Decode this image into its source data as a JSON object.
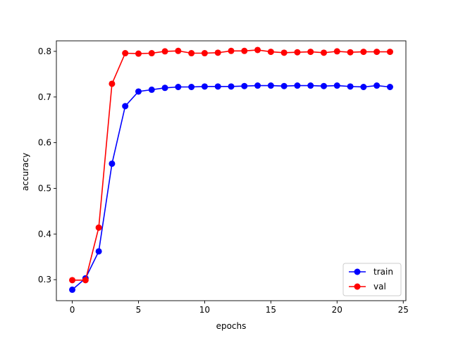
{
  "chart_data": {
    "type": "line",
    "title": "",
    "xlabel": "epochs",
    "ylabel": "accuracy",
    "xlim": [
      -1.2,
      25.2
    ],
    "ylim": [
      0.254,
      0.823
    ],
    "xticks": [
      0,
      5,
      10,
      15,
      20,
      25
    ],
    "yticks": [
      0.3,
      0.4,
      0.5,
      0.6,
      0.7,
      0.8
    ],
    "xtick_labels": [
      "0",
      "5",
      "10",
      "15",
      "20",
      "25"
    ],
    "ytick_labels": [
      "0.3",
      "0.4",
      "0.5",
      "0.6",
      "0.7",
      "0.8"
    ],
    "grid": false,
    "legend_position": "lower-right",
    "x": [
      0,
      1,
      2,
      3,
      4,
      5,
      6,
      7,
      8,
      9,
      10,
      11,
      12,
      13,
      14,
      15,
      16,
      17,
      18,
      19,
      20,
      21,
      22,
      23,
      24
    ],
    "series": [
      {
        "name": "train",
        "color": "#0000ff",
        "marker": "circle",
        "values": [
          0.278,
          0.303,
          0.362,
          0.554,
          0.68,
          0.712,
          0.716,
          0.72,
          0.722,
          0.722,
          0.723,
          0.723,
          0.723,
          0.724,
          0.725,
          0.725,
          0.724,
          0.725,
          0.725,
          0.724,
          0.725,
          0.723,
          0.722,
          0.725,
          0.722
        ]
      },
      {
        "name": "val",
        "color": "#ff0000",
        "marker": "circle",
        "values": [
          0.299,
          0.299,
          0.414,
          0.729,
          0.796,
          0.795,
          0.796,
          0.8,
          0.801,
          0.796,
          0.796,
          0.797,
          0.801,
          0.801,
          0.803,
          0.799,
          0.797,
          0.798,
          0.799,
          0.797,
          0.8,
          0.798,
          0.799,
          0.799,
          0.799
        ]
      }
    ]
  }
}
